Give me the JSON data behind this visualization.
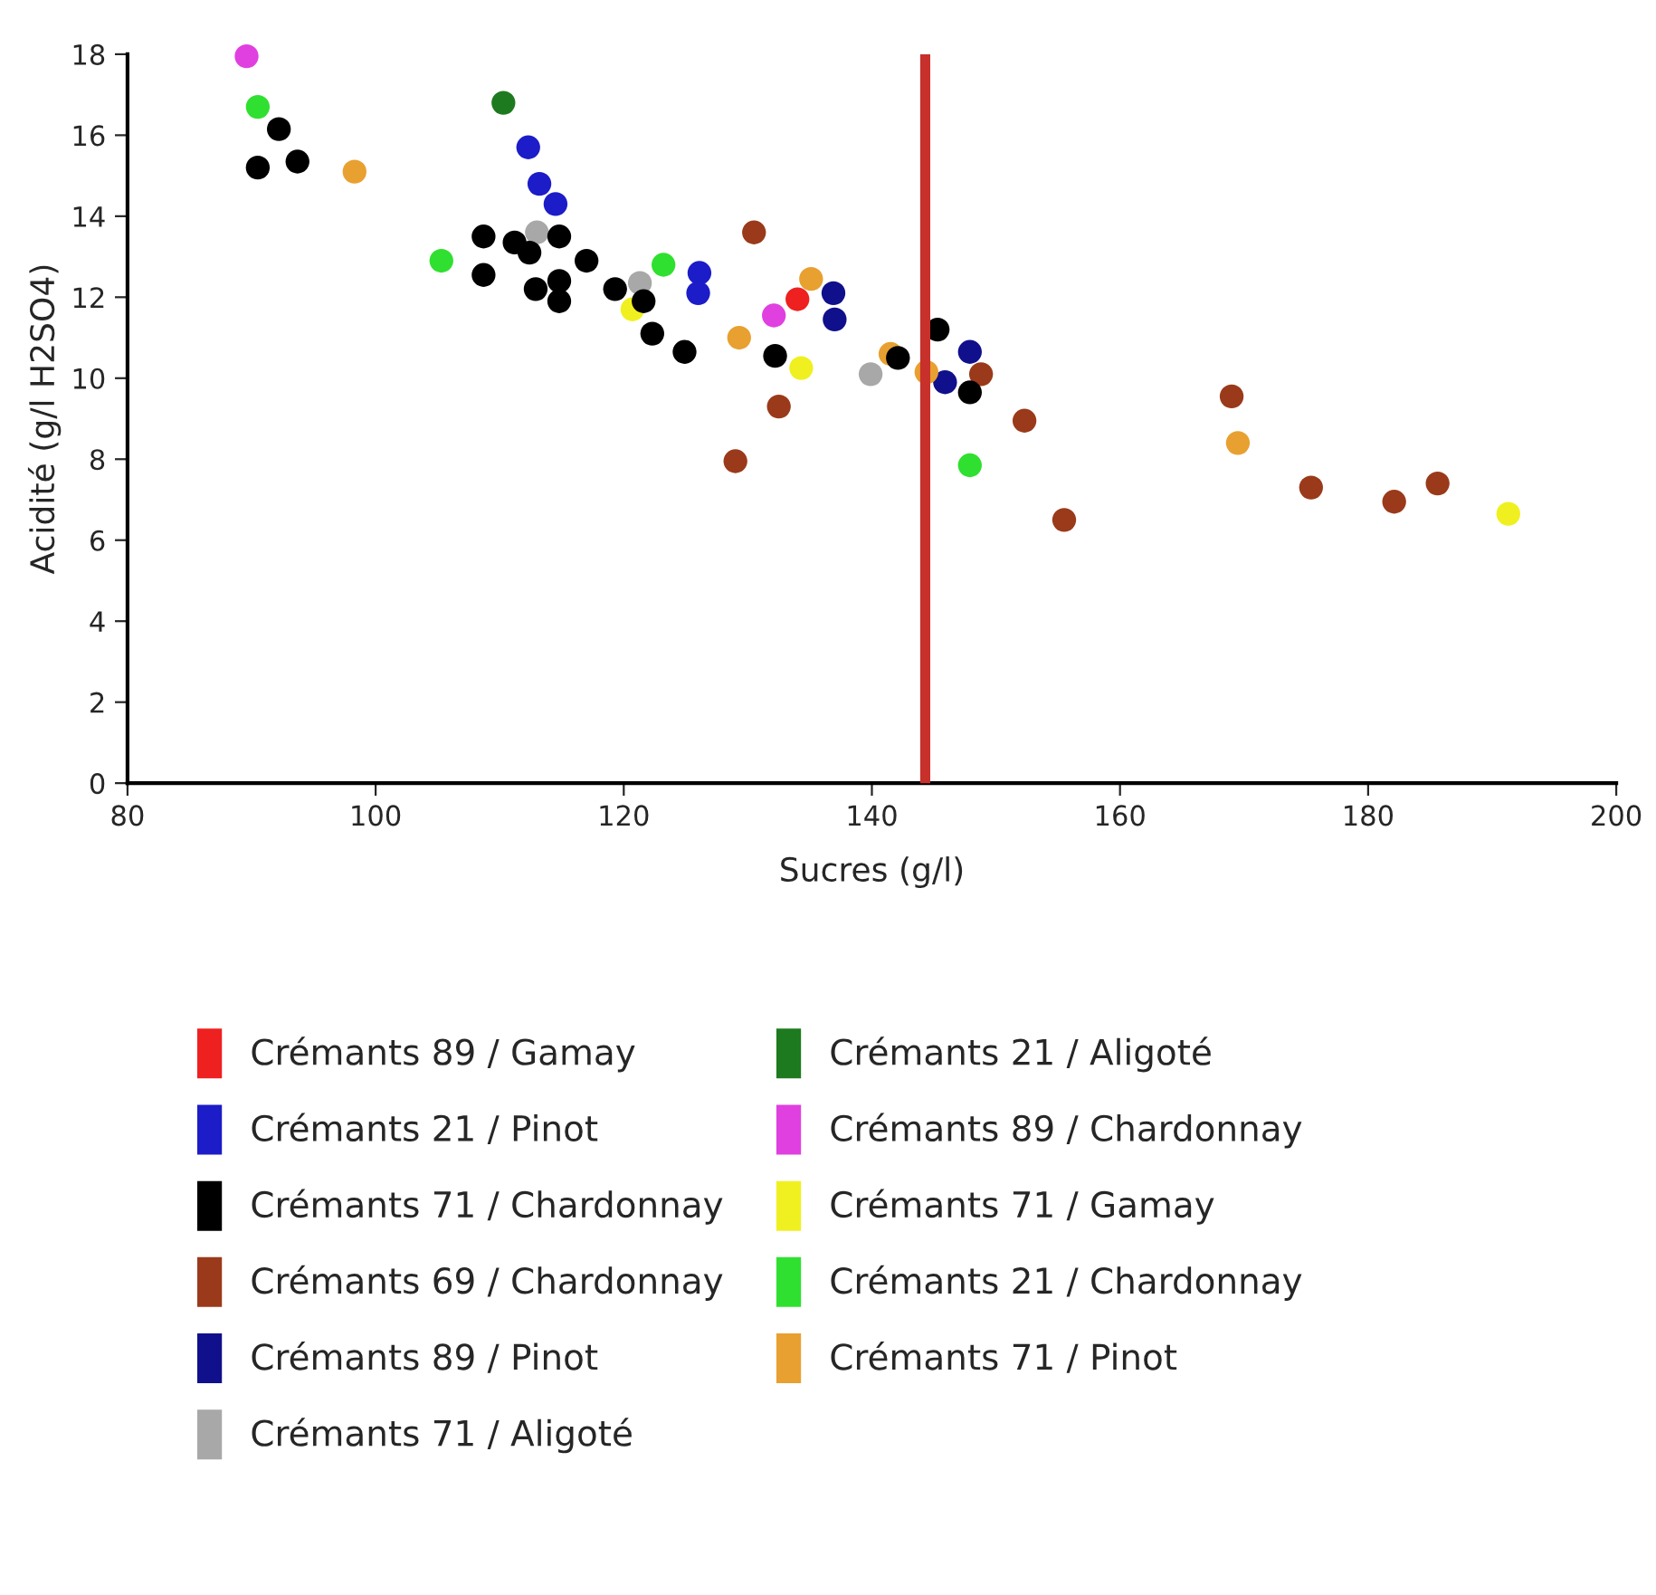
{
  "chart_data": {
    "type": "scatter",
    "xlabel": "Sucres (g/l)",
    "ylabel": "Acidité (g/l H2SO4)",
    "xlim": [
      80,
      200
    ],
    "xticks": [
      80,
      100,
      120,
      140,
      160,
      180,
      200
    ],
    "ylim": [
      0,
      18
    ],
    "yticks": [
      0,
      2,
      4,
      6,
      8,
      10,
      12,
      14,
      16,
      18
    ],
    "grid": false,
    "legend": "bottom",
    "marker": "circle",
    "ref_lines": [
      {
        "axis": "x",
        "value": 144.3,
        "color": "#c8302c"
      }
    ],
    "series": [
      {
        "name": "Crémants 89 / Gamay",
        "color": "#ee2020",
        "x": [
          134.0
        ],
        "values": [
          11.95
        ]
      },
      {
        "name": "Crémants 21 / Pinot",
        "color": "#1c1cc8",
        "x": [
          112.3,
          113.2,
          114.5,
          126.1,
          126.0
        ],
        "values": [
          15.7,
          14.8,
          14.3,
          12.6,
          12.1
        ]
      },
      {
        "name": "Crémants 71 / Chardonnay",
        "color": "#000000",
        "x": [
          92.2,
          90.5,
          93.7,
          108.7,
          108.7,
          111.2,
          112.4,
          114.8,
          112.9,
          114.8,
          114.8,
          117.0,
          119.3,
          121.6,
          122.3,
          124.9,
          132.2,
          142.1,
          145.3,
          147.9
        ],
        "values": [
          16.15,
          15.2,
          15.35,
          13.5,
          12.55,
          13.35,
          13.1,
          13.5,
          12.2,
          12.4,
          11.9,
          12.9,
          12.2,
          11.9,
          11.1,
          10.65,
          10.55,
          10.5,
          11.2,
          9.65
        ]
      },
      {
        "name": "Crémants 69 / Chardonnay",
        "color": "#9a3a1a",
        "x": [
          130.5,
          132.5,
          129.0,
          148.8,
          152.3,
          155.5,
          169.0,
          175.4,
          182.1,
          185.6
        ],
        "values": [
          13.6,
          9.3,
          7.95,
          10.1,
          8.95,
          6.5,
          9.55,
          7.3,
          6.95,
          7.4
        ]
      },
      {
        "name": "Crémants 89 / Pinot",
        "color": "#10108c",
        "x": [
          136.9,
          137.0,
          147.9,
          145.9
        ],
        "values": [
          12.1,
          11.45,
          10.65,
          9.9
        ]
      },
      {
        "name": "Crémants 71 / Aligoté",
        "color": "#a8a8a8",
        "x": [
          113.0,
          121.3,
          139.9
        ],
        "values": [
          13.6,
          12.35,
          10.1
        ]
      },
      {
        "name": "Crémants 21 / Aligoté",
        "color": "#1e7a1e",
        "x": [
          110.3
        ],
        "values": [
          16.8
        ]
      },
      {
        "name": "Crémants 89 / Chardonnay",
        "color": "#e040e0",
        "x": [
          89.6,
          132.1
        ],
        "values": [
          17.95,
          11.55
        ]
      },
      {
        "name": "Crémants 71 / Gamay",
        "color": "#f0f020",
        "x": [
          120.7,
          134.3,
          191.3
        ],
        "values": [
          11.7,
          10.25,
          6.65
        ]
      },
      {
        "name": "Crémants 21 / Chardonnay",
        "color": "#30e030",
        "x": [
          90.5,
          105.3,
          123.2,
          147.9
        ],
        "values": [
          16.7,
          12.9,
          12.8,
          7.85
        ]
      },
      {
        "name": "Crémants 71 / Pinot",
        "color": "#e8a030",
        "x": [
          98.3,
          135.1,
          129.3,
          141.5,
          144.4,
          169.5
        ],
        "values": [
          15.1,
          12.45,
          11.0,
          10.6,
          10.15,
          8.4
        ]
      }
    ]
  }
}
